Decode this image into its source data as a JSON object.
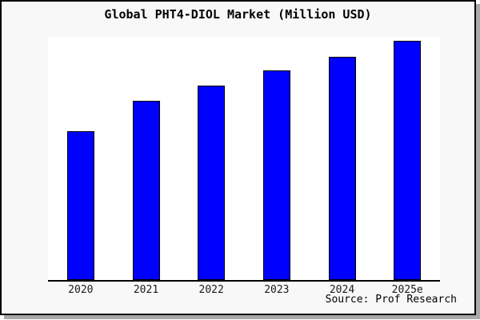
{
  "window": {
    "background_color": "#f8f8f8",
    "plot_background_color": "#ffffff",
    "frame_border_color": "#000000",
    "shadow_color": "#a9a9a9"
  },
  "header": {
    "title": "Global PHT4-DIOL Market (Million USD)"
  },
  "footer": {
    "source_label": "Source: Prof Research"
  },
  "chart_data": {
    "type": "bar",
    "title": "Global PHT4-DIOL Market (Million USD)",
    "categories": [
      "2020",
      "2021",
      "2022",
      "2023",
      "2024",
      "2025e"
    ],
    "values": [
      62.3,
      74.9,
      81.4,
      87.6,
      93.5,
      100
    ],
    "value_scale_note": "no y-axis ticks shown; values estimated relative to tallest bar (2025e = 100)",
    "xlabel": "",
    "ylabel": "",
    "ylim": [
      0,
      101.7
    ],
    "grid": false,
    "legend": false,
    "bar_color": "#0000ff",
    "bar_border_color": "#000000",
    "axis_line_color": "#000000",
    "source": "Prof Research"
  }
}
